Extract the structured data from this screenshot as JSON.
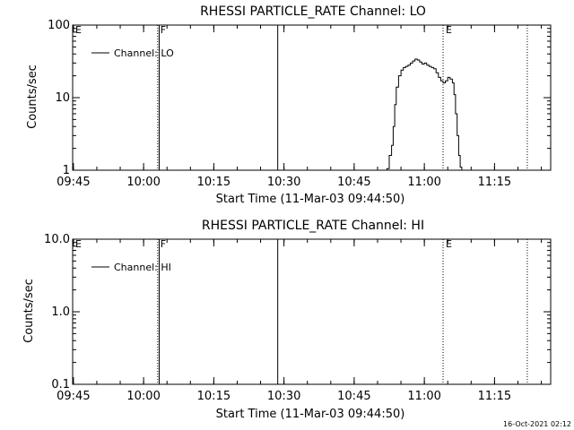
{
  "timestamp": "16-Oct-2021 02:12",
  "chart_data": [
    {
      "type": "line",
      "title": "RHESSI PARTICLE_RATE Channel: LO",
      "xlabel": "Start Time (11-Mar-03 09:44:50)",
      "ylabel": "Counts/sec",
      "x_ticks": [
        "09:45",
        "10:00",
        "10:15",
        "10:30",
        "10:45",
        "11:00",
        "11:15"
      ],
      "x_range": [
        "09:44:50",
        "11:27:00"
      ],
      "y_scale": "log",
      "y_ticks": [
        "1",
        "10",
        "100"
      ],
      "y_range": [
        1,
        100
      ],
      "legend": "top-left",
      "series": [
        {
          "name": "Channel: LO",
          "x": [
            "10:51:30",
            "10:52:00",
            "10:52:30",
            "10:53:00",
            "10:53:20",
            "10:53:40",
            "10:54:00",
            "10:54:30",
            "10:55:00",
            "10:55:30",
            "10:56:00",
            "10:56:30",
            "10:57:00",
            "10:57:30",
            "10:58:00",
            "10:58:30",
            "10:59:00",
            "10:59:30",
            "11:00:00",
            "11:00:30",
            "11:01:00",
            "11:01:30",
            "11:02:00",
            "11:02:30",
            "11:03:00",
            "11:03:30",
            "11:04:00",
            "11:04:30",
            "11:05:00",
            "11:05:30",
            "11:06:00",
            "11:06:20",
            "11:06:40",
            "11:07:00",
            "11:07:20",
            "11:07:40",
            "11:08:00"
          ],
          "y": [
            0.8,
            1.05,
            1.6,
            2.2,
            4.0,
            8.0,
            14,
            20,
            24,
            26,
            27,
            28,
            30,
            32,
            34,
            33,
            31,
            29,
            30,
            28,
            27,
            26,
            25,
            22,
            19,
            17,
            16,
            17,
            19,
            18,
            16,
            11,
            6,
            3,
            1.6,
            1.1,
            0.8
          ]
        }
      ],
      "markers": [
        {
          "label": "E",
          "time": "09:44:50",
          "style": "none"
        },
        {
          "label": "F",
          "time": "10:03:00",
          "style": "dotted"
        },
        {
          "label": "",
          "time": "10:03:20",
          "style": "solid"
        },
        {
          "label": "",
          "time": "10:28:40",
          "style": "solid"
        },
        {
          "label": "E",
          "time": "11:04:00",
          "style": "dotted"
        },
        {
          "label": "",
          "time": "11:22:00",
          "style": "dotted"
        }
      ]
    },
    {
      "type": "line",
      "title": "RHESSI PARTICLE_RATE Channel: HI",
      "xlabel": "Start Time (11-Mar-03 09:44:50)",
      "ylabel": "Counts/sec",
      "x_ticks": [
        "09:45",
        "10:00",
        "10:15",
        "10:30",
        "10:45",
        "11:00",
        "11:15"
      ],
      "x_range": [
        "09:44:50",
        "11:27:00"
      ],
      "y_scale": "log",
      "y_ticks": [
        "0.1",
        "1.0",
        "10.0"
      ],
      "y_range": [
        0.1,
        10
      ],
      "legend": "top-left",
      "series": [
        {
          "name": "Channel: HI",
          "x": [],
          "y": []
        }
      ],
      "markers": [
        {
          "label": "E",
          "time": "09:44:50",
          "style": "none"
        },
        {
          "label": "F",
          "time": "10:03:00",
          "style": "dotted"
        },
        {
          "label": "",
          "time": "10:03:20",
          "style": "solid"
        },
        {
          "label": "",
          "time": "10:28:40",
          "style": "solid"
        },
        {
          "label": "E",
          "time": "11:04:00",
          "style": "dotted"
        },
        {
          "label": "",
          "time": "11:22:00",
          "style": "dotted"
        }
      ]
    }
  ]
}
